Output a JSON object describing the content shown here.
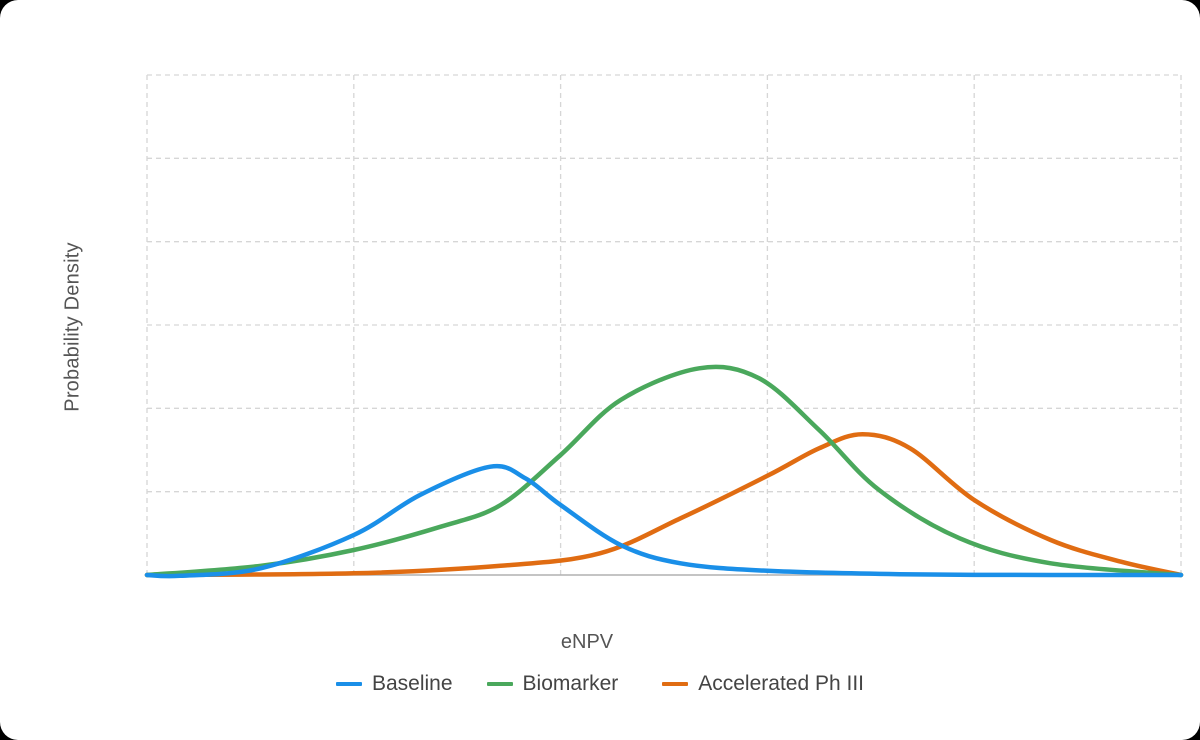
{
  "chart_data": {
    "type": "line",
    "title": "",
    "xlabel": "eNPV",
    "ylabel": "Probability Density",
    "x_ticks_visible": false,
    "y_ticks_visible": false,
    "grid": {
      "on": true,
      "style": "dashed",
      "x_divisions": 5,
      "y_divisions": 6
    },
    "xlim": [
      0,
      5
    ],
    "ylim": [
      0,
      6
    ],
    "legend_position": "bottom",
    "series": [
      {
        "name": "Baseline",
        "color": "#1a8fe8",
        "points": [
          [
            0,
            0
          ],
          [
            0.16,
            -0.01
          ],
          [
            0.55,
            0.08
          ],
          [
            1.0,
            0.48
          ],
          [
            1.32,
            0.96
          ],
          [
            1.66,
            1.3
          ],
          [
            1.83,
            1.16
          ],
          [
            2.0,
            0.84
          ],
          [
            2.29,
            0.36
          ],
          [
            2.58,
            0.14
          ],
          [
            3.0,
            0.05
          ],
          [
            3.64,
            0.01
          ],
          [
            4.37,
            0
          ],
          [
            5,
            0
          ]
        ]
      },
      {
        "name": "Biomarker",
        "color": "#4aa85c",
        "points": [
          [
            0,
            0
          ],
          [
            0.55,
            0.11
          ],
          [
            1.0,
            0.3
          ],
          [
            1.42,
            0.58
          ],
          [
            1.71,
            0.84
          ],
          [
            2.0,
            1.44
          ],
          [
            2.29,
            2.1
          ],
          [
            2.67,
            2.48
          ],
          [
            2.96,
            2.36
          ],
          [
            3.25,
            1.74
          ],
          [
            3.54,
            1.02
          ],
          [
            3.93,
            0.44
          ],
          [
            4.37,
            0.14
          ],
          [
            5,
            0
          ]
        ]
      },
      {
        "name": "Accelerated Ph III",
        "color": "#e06c12",
        "points": [
          [
            0,
            0
          ],
          [
            1.0,
            0.02
          ],
          [
            1.71,
            0.11
          ],
          [
            2.19,
            0.26
          ],
          [
            2.58,
            0.68
          ],
          [
            3.0,
            1.19
          ],
          [
            3.25,
            1.52
          ],
          [
            3.46,
            1.69
          ],
          [
            3.69,
            1.52
          ],
          [
            4.0,
            0.9
          ],
          [
            4.37,
            0.42
          ],
          [
            4.71,
            0.16
          ],
          [
            5,
            0
          ]
        ]
      }
    ]
  },
  "axes": {
    "x_title": "eNPV",
    "y_title": "Probability Density"
  },
  "legend": {
    "items": [
      {
        "label": "Baseline",
        "color": "#1a8fe8"
      },
      {
        "label": "Biomarker",
        "color": "#4aa85c"
      },
      {
        "label": "Accelerated Ph III",
        "color": "#e06c12"
      }
    ]
  }
}
